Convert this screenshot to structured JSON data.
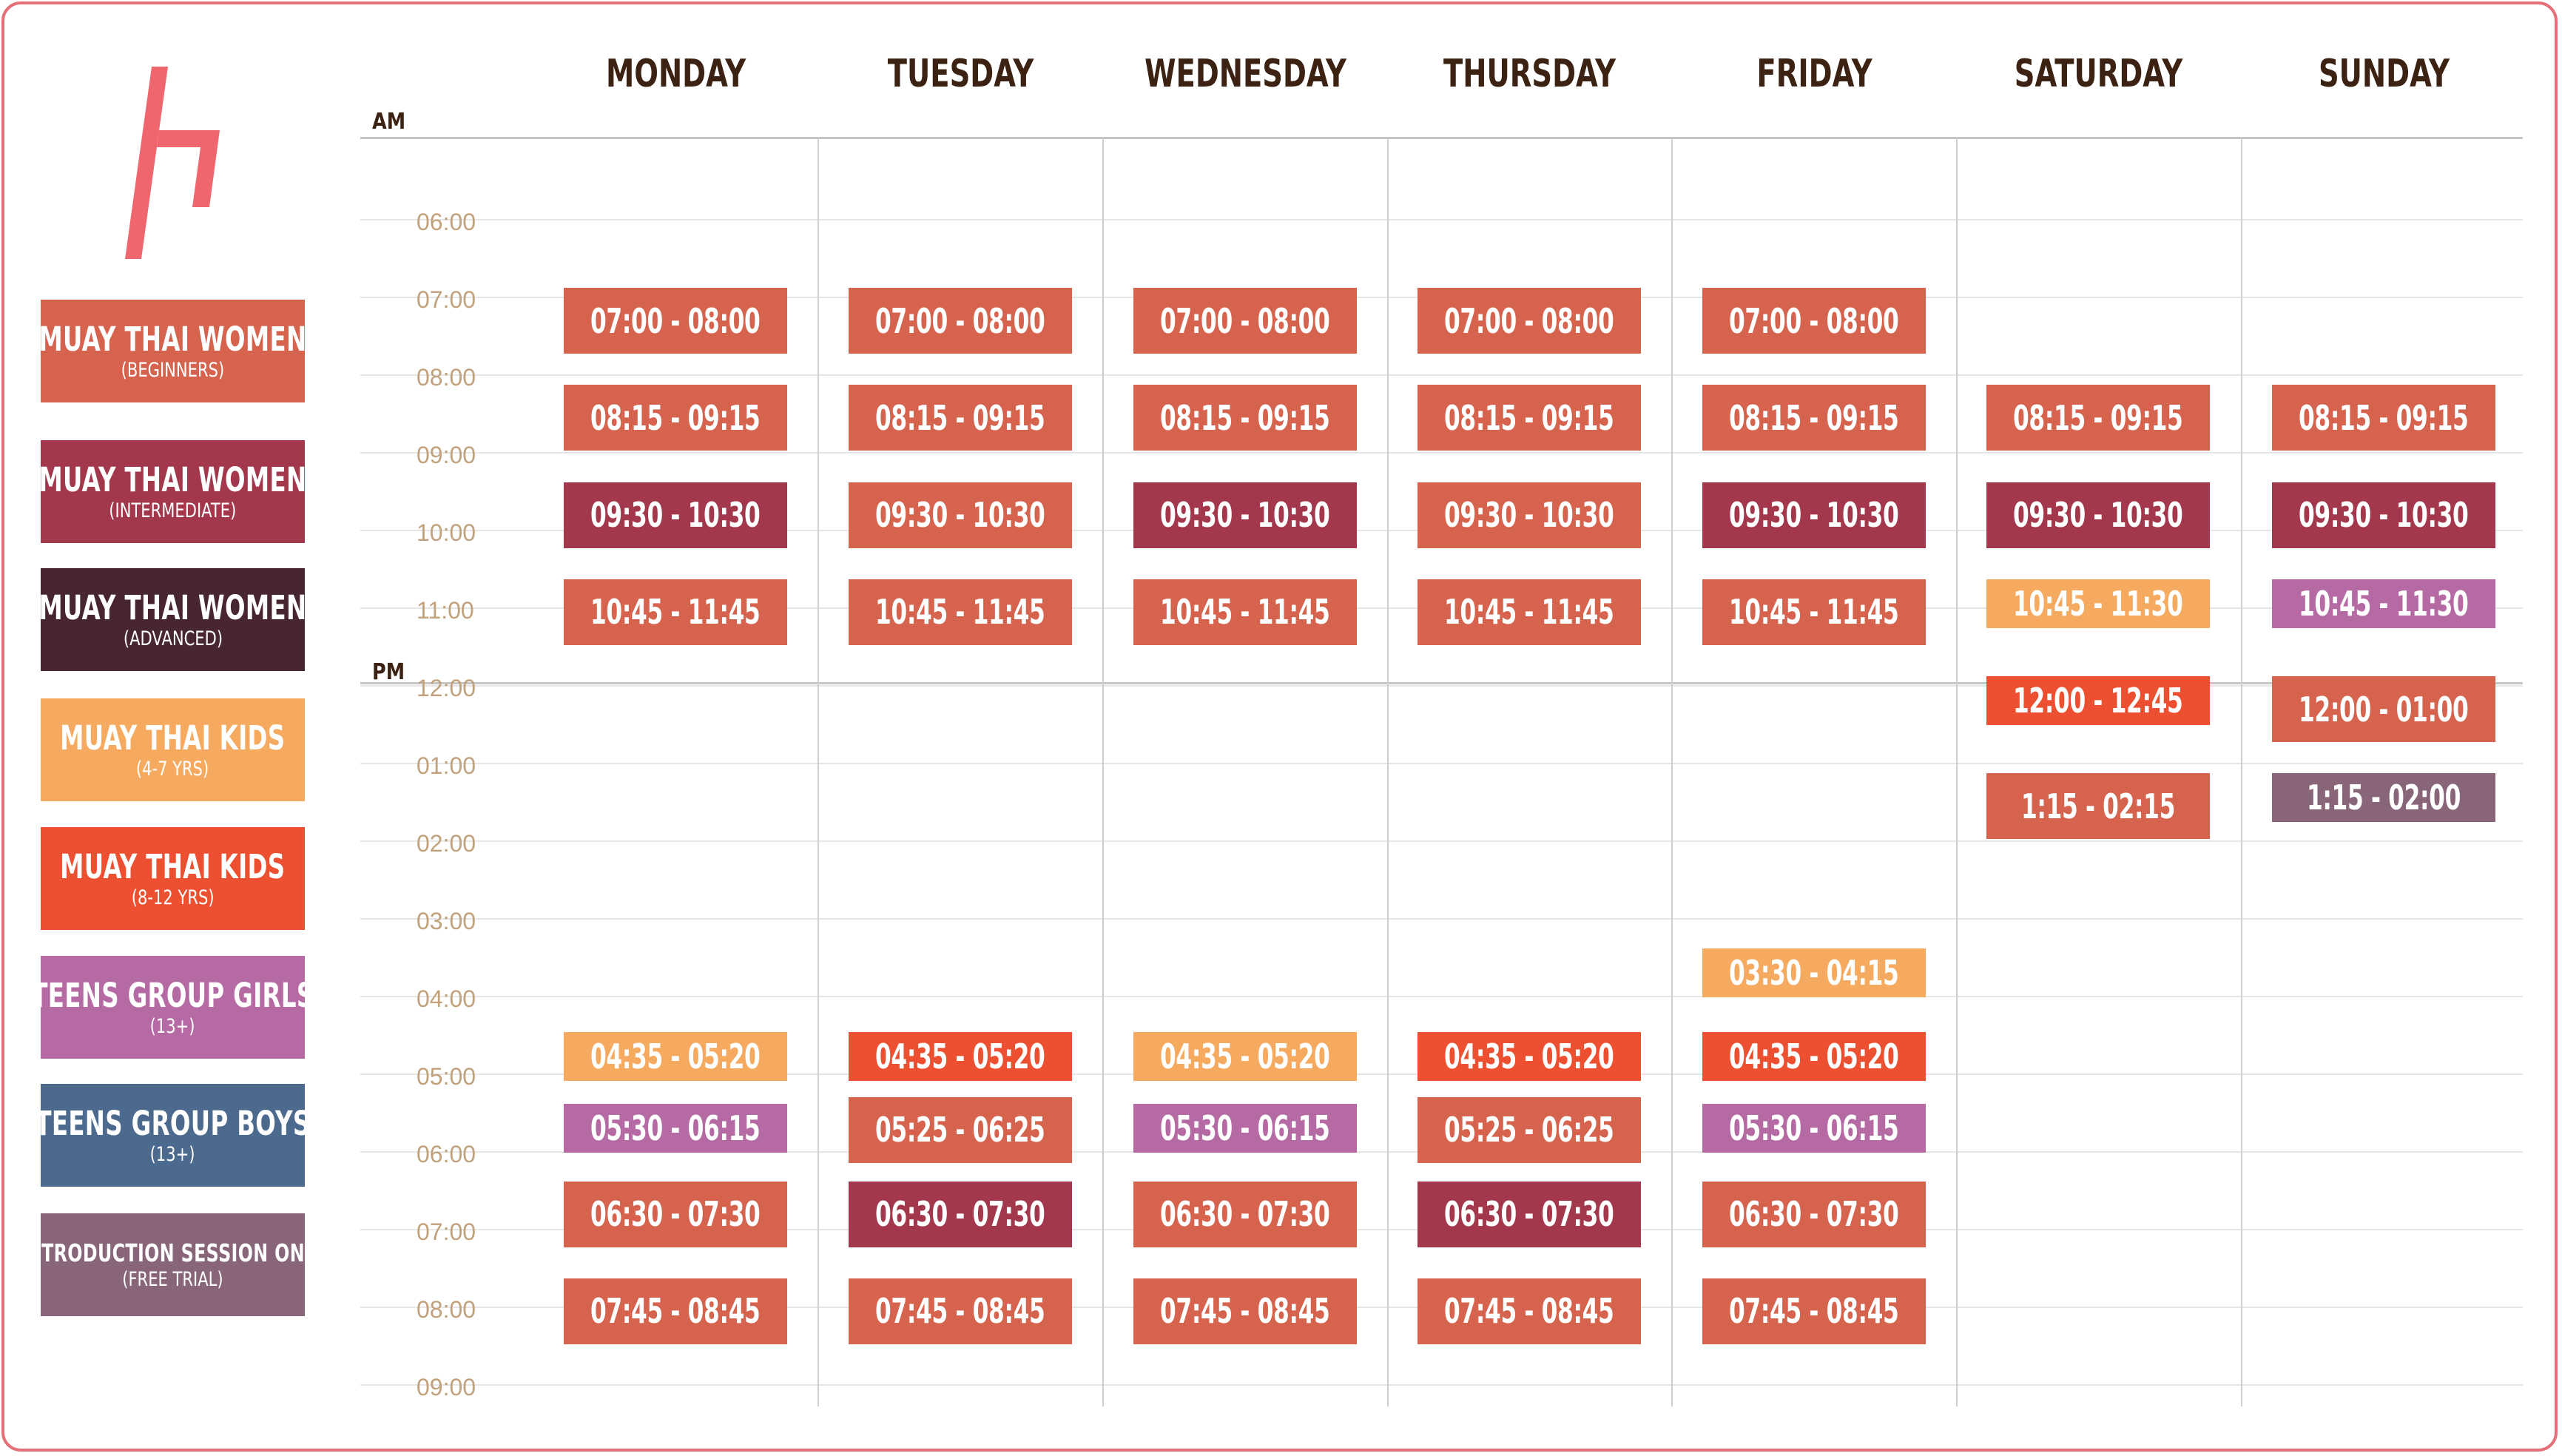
{
  "colors": {
    "women_beginners": "#d6634e",
    "women_intermediate": "#a3384d",
    "women_advanced": "#47262f",
    "kids_4_7": "#f5aa5f",
    "kids_8_12": "#ec5030",
    "teens_girls": "#b56aa4",
    "teens_boys": "#4b6a8d",
    "intro": "#886578",
    "logo": "#f0666e",
    "border": "#e4707a"
  },
  "legend": [
    {
      "id": "women_beginners",
      "title": "MUAY THAI WOMEN",
      "subtitle": "(BEGINNERS)"
    },
    {
      "id": "women_intermediate",
      "title": "MUAY THAI WOMEN",
      "subtitle": "(INTERMEDIATE)"
    },
    {
      "id": "women_advanced",
      "title": "MUAY THAI WOMEN",
      "subtitle": "(ADVANCED)"
    },
    {
      "id": "kids_4_7",
      "title": "MUAY THAI KIDS",
      "subtitle": "(4-7 YRS)"
    },
    {
      "id": "kids_8_12",
      "title": "MUAY THAI KIDS",
      "subtitle": "(8-12 YRS)"
    },
    {
      "id": "teens_girls",
      "title": "TEENS GROUP GIRLS",
      "subtitle": "(13+)"
    },
    {
      "id": "teens_boys",
      "title": "TEENS GROUP BOYS",
      "subtitle": "(13+)"
    },
    {
      "id": "intro",
      "title": "INTRODUCTION SESSION ONLY",
      "subtitle": "(FREE TRIAL)"
    }
  ],
  "days": [
    "MONDAY",
    "TUESDAY",
    "WEDNESDAY",
    "THURSDAY",
    "FRIDAY",
    "SATURDAY",
    "SUNDAY"
  ],
  "periods": {
    "am": "AM",
    "pm": "PM"
  },
  "time_labels": [
    "06:00",
    "07:00",
    "08:00",
    "09:00",
    "10:00",
    "11:00",
    "12:00",
    "01:00",
    "02:00",
    "03:00",
    "04:00",
    "05:00",
    "06:00",
    "07:00",
    "08:00",
    "09:00"
  ],
  "schedule": [
    {
      "day": 0,
      "type": "women_beginners",
      "label": "07:00 - 08:00"
    },
    {
      "day": 0,
      "type": "women_beginners",
      "label": "08:15 - 09:15"
    },
    {
      "day": 0,
      "type": "women_intermediate",
      "label": "09:30 - 10:30"
    },
    {
      "day": 0,
      "type": "women_beginners",
      "label": "10:45 - 11:45"
    },
    {
      "day": 0,
      "type": "kids_4_7",
      "label": "04:35 - 05:20"
    },
    {
      "day": 0,
      "type": "teens_girls",
      "label": "05:30 - 06:15"
    },
    {
      "day": 0,
      "type": "women_beginners",
      "label": "06:30 - 07:30"
    },
    {
      "day": 0,
      "type": "women_beginners",
      "label": "07:45 - 08:45"
    },
    {
      "day": 1,
      "type": "women_beginners",
      "label": "07:00 - 08:00"
    },
    {
      "day": 1,
      "type": "women_beginners",
      "label": "08:15 - 09:15"
    },
    {
      "day": 1,
      "type": "women_beginners",
      "label": "09:30 - 10:30"
    },
    {
      "day": 1,
      "type": "women_beginners",
      "label": "10:45 - 11:45"
    },
    {
      "day": 1,
      "type": "kids_8_12",
      "label": "04:35 - 05:20"
    },
    {
      "day": 1,
      "type": "women_beginners",
      "label": "05:25 - 06:25"
    },
    {
      "day": 1,
      "type": "women_intermediate",
      "label": "06:30 - 07:30"
    },
    {
      "day": 1,
      "type": "women_beginners",
      "label": "07:45 - 08:45"
    },
    {
      "day": 2,
      "type": "women_beginners",
      "label": "07:00 - 08:00"
    },
    {
      "day": 2,
      "type": "women_beginners",
      "label": "08:15 - 09:15"
    },
    {
      "day": 2,
      "type": "women_intermediate",
      "label": "09:30 - 10:30"
    },
    {
      "day": 2,
      "type": "women_beginners",
      "label": "10:45 - 11:45"
    },
    {
      "day": 2,
      "type": "kids_4_7",
      "label": "04:35 - 05:20"
    },
    {
      "day": 2,
      "type": "teens_girls",
      "label": "05:30 - 06:15"
    },
    {
      "day": 2,
      "type": "women_beginners",
      "label": "06:30 - 07:30"
    },
    {
      "day": 2,
      "type": "women_beginners",
      "label": "07:45 - 08:45"
    },
    {
      "day": 3,
      "type": "women_beginners",
      "label": "07:00 - 08:00"
    },
    {
      "day": 3,
      "type": "women_beginners",
      "label": "08:15 - 09:15"
    },
    {
      "day": 3,
      "type": "women_beginners",
      "label": "09:30 - 10:30"
    },
    {
      "day": 3,
      "type": "women_beginners",
      "label": "10:45 - 11:45"
    },
    {
      "day": 3,
      "type": "kids_8_12",
      "label": "04:35 - 05:20"
    },
    {
      "day": 3,
      "type": "women_beginners",
      "label": "05:25 - 06:25"
    },
    {
      "day": 3,
      "type": "women_intermediate",
      "label": "06:30 - 07:30"
    },
    {
      "day": 3,
      "type": "women_beginners",
      "label": "07:45 - 08:45"
    },
    {
      "day": 4,
      "type": "women_beginners",
      "label": "07:00 - 08:00"
    },
    {
      "day": 4,
      "type": "women_beginners",
      "label": "08:15 - 09:15"
    },
    {
      "day": 4,
      "type": "women_intermediate",
      "label": "09:30 - 10:30"
    },
    {
      "day": 4,
      "type": "women_beginners",
      "label": "10:45 - 11:45"
    },
    {
      "day": 4,
      "type": "kids_4_7",
      "label": "03:30 - 04:15"
    },
    {
      "day": 4,
      "type": "kids_8_12",
      "label": "04:35 - 05:20"
    },
    {
      "day": 4,
      "type": "teens_girls",
      "label": "05:30 - 06:15"
    },
    {
      "day": 4,
      "type": "women_beginners",
      "label": "06:30 - 07:30"
    },
    {
      "day": 4,
      "type": "women_beginners",
      "label": "07:45 - 08:45"
    },
    {
      "day": 5,
      "type": "women_beginners",
      "label": "08:15 - 09:15"
    },
    {
      "day": 5,
      "type": "women_intermediate",
      "label": "09:30 - 10:30"
    },
    {
      "day": 5,
      "type": "kids_4_7",
      "label": "10:45 - 11:30"
    },
    {
      "day": 5,
      "type": "kids_8_12",
      "label": "12:00 - 12:45"
    },
    {
      "day": 5,
      "type": "women_beginners",
      "label": "1:15 - 02:15"
    },
    {
      "day": 6,
      "type": "women_beginners",
      "label": "08:15 - 09:15"
    },
    {
      "day": 6,
      "type": "women_intermediate",
      "label": "09:30 - 10:30"
    },
    {
      "day": 6,
      "type": "teens_girls",
      "label": "10:45 - 11:30"
    },
    {
      "day": 6,
      "type": "women_beginners",
      "label": "12:00 - 01:00"
    },
    {
      "day": 6,
      "type": "intro",
      "label": "1:15 - 02:00"
    }
  ]
}
